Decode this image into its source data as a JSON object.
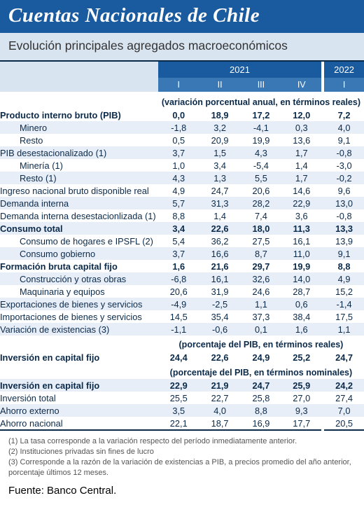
{
  "colors": {
    "title_bg": "#1a5a9e",
    "title_text": "#ffffff",
    "subtitle_bg": "#d9e4f1",
    "subtitle_text": "#333333",
    "header_year_bg": "#1a5a9e",
    "header_q_bg": "#3a77b5",
    "stripe_bg": "#e7eef8",
    "body_text": "#0b2a4a",
    "rule": "#0b2a4a",
    "footnote_text": "#555555",
    "source_text": "#000000"
  },
  "layout": {
    "label_col_width": 206,
    "val_col_width": 58,
    "gap_between_years": 4,
    "title_fontsize": 29,
    "subtitle_fontsize": 17.5,
    "body_fontsize": 12.8,
    "footnote_fontsize": 11,
    "source_fontsize": 15
  },
  "title": "Cuentas Nacionales de Chile",
  "subtitle": "Evolución principales agregados macroeconómicos",
  "years": [
    {
      "label": "2021",
      "span": 4
    },
    {
      "label": "2022",
      "span": 1
    }
  ],
  "quarters": [
    "I",
    "II",
    "III",
    "IV",
    "I"
  ],
  "sections": [
    {
      "note": "(variación porcentual anual, en términos reales)",
      "rows": [
        {
          "label": "Producto interno bruto (PIB)",
          "bold": true,
          "indent": false,
          "vals": [
            "0,0",
            "18,9",
            "17,2",
            "12,0",
            "7,2"
          ]
        },
        {
          "label": "Minero",
          "bold": false,
          "indent": true,
          "vals": [
            "-1,8",
            "3,2",
            "-4,1",
            "0,3",
            "4,0"
          ]
        },
        {
          "label": "Resto",
          "bold": false,
          "indent": true,
          "vals": [
            "0,5",
            "20,9",
            "19,9",
            "13,6",
            "9,1"
          ]
        },
        {
          "label": "PIB desestacionalizado (1)",
          "bold": false,
          "indent": false,
          "vals": [
            "3,7",
            "1,5",
            "4,3",
            "1,7",
            "-0,8"
          ]
        },
        {
          "label": "Minería (1)",
          "bold": false,
          "indent": true,
          "vals": [
            "1,0",
            "3,4",
            "-5,4",
            "1,4",
            "-3,0"
          ]
        },
        {
          "label": "Resto (1)",
          "bold": false,
          "indent": true,
          "vals": [
            "4,3",
            "1,3",
            "5,5",
            "1,7",
            "-0,2"
          ]
        },
        {
          "label": "Ingreso nacional bruto disponible real",
          "bold": false,
          "indent": false,
          "vals": [
            "4,9",
            "24,7",
            "20,6",
            "14,6",
            "9,6"
          ]
        },
        {
          "label": "Demanda interna",
          "bold": false,
          "indent": false,
          "vals": [
            "5,7",
            "31,3",
            "28,2",
            "22,9",
            "13,0"
          ]
        },
        {
          "label": "Demanda interna desestacionlizada (1)",
          "bold": false,
          "indent": false,
          "vals": [
            "8,8",
            "1,4",
            "7,4",
            "3,6",
            "-0,8"
          ]
        },
        {
          "label": "Consumo total",
          "bold": true,
          "indent": false,
          "vals": [
            "3,4",
            "22,6",
            "18,0",
            "11,3",
            "13,3"
          ]
        },
        {
          "label": "Consumo de hogares e IPSFL (2)",
          "bold": false,
          "indent": true,
          "vals": [
            "5,4",
            "36,2",
            "27,5",
            "16,1",
            "13,9"
          ]
        },
        {
          "label": "Consumo gobierno",
          "bold": false,
          "indent": true,
          "vals": [
            "3,7",
            "16,6",
            "8,7",
            "11,0",
            "9,1"
          ]
        },
        {
          "label": "Formación bruta capital fijo",
          "bold": true,
          "indent": false,
          "vals": [
            "1,6",
            "21,6",
            "29,7",
            "19,9",
            "8,8"
          ]
        },
        {
          "label": "Construcción y otras obras",
          "bold": false,
          "indent": true,
          "vals": [
            "-6,8",
            "16,1",
            "32,6",
            "14,0",
            "4,9"
          ]
        },
        {
          "label": "Maquinaria y equipos",
          "bold": false,
          "indent": true,
          "vals": [
            "20,6",
            "31,9",
            "24,6",
            "28,7",
            "15,2"
          ]
        },
        {
          "label": "Exportaciones de bienes y servicios",
          "bold": false,
          "indent": false,
          "vals": [
            "-4,9",
            "-2,5",
            "1,1",
            "0,6",
            "-1,4"
          ]
        },
        {
          "label": "Importaciones de bienes y servicios",
          "bold": false,
          "indent": false,
          "vals": [
            "14,5",
            "35,4",
            "37,3",
            "38,4",
            "17,5"
          ]
        },
        {
          "label": "Variación de existencias (3)",
          "bold": false,
          "indent": false,
          "vals": [
            "-1,1",
            "-0,6",
            "0,1",
            "1,6",
            "1,1"
          ]
        }
      ]
    },
    {
      "note": "(porcentaje del PIB, en términos reales)",
      "rows": [
        {
          "label": "Inversión en capital fijo",
          "bold": true,
          "indent": false,
          "vals": [
            "24,4",
            "22,6",
            "24,9",
            "25,2",
            "24,7"
          ]
        }
      ]
    },
    {
      "note": "(porcentaje del PIB, en términos nominales)",
      "rows": [
        {
          "label": "Inversión en capital fijo",
          "bold": true,
          "indent": false,
          "vals": [
            "22,9",
            "21,9",
            "24,7",
            "25,9",
            "24,2"
          ]
        },
        {
          "label": "Inversión total",
          "bold": false,
          "indent": false,
          "vals": [
            "25,5",
            "22,7",
            "25,8",
            "27,0",
            "27,4"
          ]
        },
        {
          "label": "Ahorro externo",
          "bold": false,
          "indent": false,
          "vals": [
            "3,5",
            "4,0",
            "8,8",
            "9,3",
            "7,0"
          ]
        },
        {
          "label": "Ahorro nacional",
          "bold": false,
          "indent": false,
          "vals": [
            "22,1",
            "18,7",
            "16,9",
            "17,7",
            "20,5"
          ]
        }
      ]
    }
  ],
  "footnotes": [
    "(1) La tasa corresponde a la variación respecto del período inmediatamente anterior.",
    "(2) Instituciones privadas sin fines de lucro",
    "(3) Corresponde a la razón de la variación de existencias a PIB, a precios promedio del año anterior, porcentaje últimos 12 meses."
  ],
  "source": "Fuente: Banco Central."
}
